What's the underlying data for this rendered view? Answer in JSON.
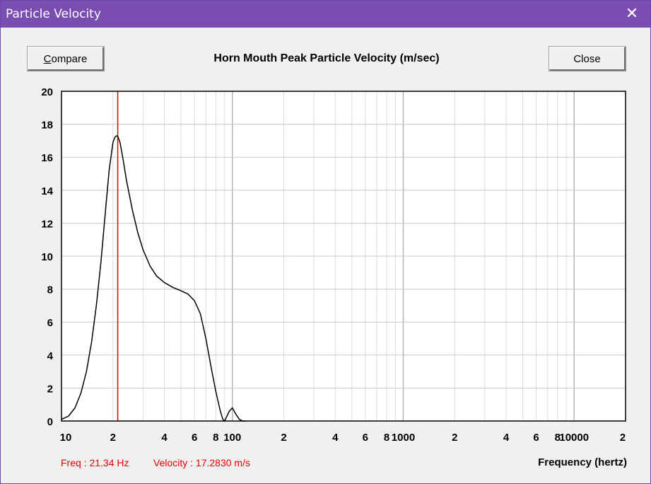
{
  "window": {
    "title": "Particle Velocity",
    "close_glyph": "✕"
  },
  "buttons": {
    "compare_label": "Compare",
    "compare_mnemonic": "C",
    "compare_rest": "ompare",
    "close_label": "Close"
  },
  "status": {
    "freq_text": "Freq : 21.34 Hz",
    "velocity_text": "Velocity : 17.2830 m/s"
  },
  "colors": {
    "titlebar": "#7a4db0",
    "curve": "#000000",
    "cursor": "#e00000",
    "grid": "#c8c8c8"
  },
  "chart_data": {
    "type": "line",
    "title": "Horn Mouth Peak Particle Velocity (m/sec)",
    "xlabel": "Frequency (hertz)",
    "ylabel": "",
    "x_scale": "log",
    "xlim": [
      10,
      20000
    ],
    "ylim": [
      0,
      20
    ],
    "grid": true,
    "y_ticks": [
      "0",
      "2",
      "4",
      "6",
      "8",
      "10",
      "12",
      "14",
      "16",
      "18",
      "20"
    ],
    "x_tick_labels": [
      {
        "x": 10,
        "label": "10"
      },
      {
        "x": 20,
        "label": "2"
      },
      {
        "x": 40,
        "label": "4"
      },
      {
        "x": 60,
        "label": "6"
      },
      {
        "x": 80,
        "label": "8"
      },
      {
        "x": 100,
        "label": "100"
      },
      {
        "x": 200,
        "label": "2"
      },
      {
        "x": 400,
        "label": "4"
      },
      {
        "x": 600,
        "label": "6"
      },
      {
        "x": 800,
        "label": "8"
      },
      {
        "x": 1000,
        "label": "1000"
      },
      {
        "x": 2000,
        "label": "2"
      },
      {
        "x": 4000,
        "label": "4"
      },
      {
        "x": 6000,
        "label": "6"
      },
      {
        "x": 8000,
        "label": "8"
      },
      {
        "x": 10000,
        "label": "10000"
      },
      {
        "x": 20000,
        "label": "2"
      }
    ],
    "cursor_x": 21.34,
    "series": [
      {
        "values_x": [
          10,
          11,
          12,
          13,
          14,
          15,
          16,
          17,
          18,
          19,
          20,
          20.5,
          21,
          21.34,
          22,
          23,
          24,
          26,
          28,
          30,
          33,
          36,
          40,
          45,
          50,
          55,
          60,
          65,
          70,
          75,
          80,
          85,
          88,
          90,
          93,
          96,
          100,
          105,
          110,
          115,
          120
        ],
        "values_y": [
          0.1,
          0.3,
          0.8,
          1.7,
          3.0,
          4.8,
          7.0,
          9.6,
          12.5,
          15.2,
          16.9,
          17.2,
          17.3,
          17.28,
          16.9,
          15.8,
          14.6,
          12.8,
          11.4,
          10.4,
          9.4,
          8.8,
          8.4,
          8.1,
          7.9,
          7.7,
          7.3,
          6.5,
          5.0,
          3.3,
          1.8,
          0.6,
          0.1,
          0.0,
          0.3,
          0.6,
          0.8,
          0.4,
          0.1,
          0.0,
          0.0
        ]
      }
    ]
  }
}
